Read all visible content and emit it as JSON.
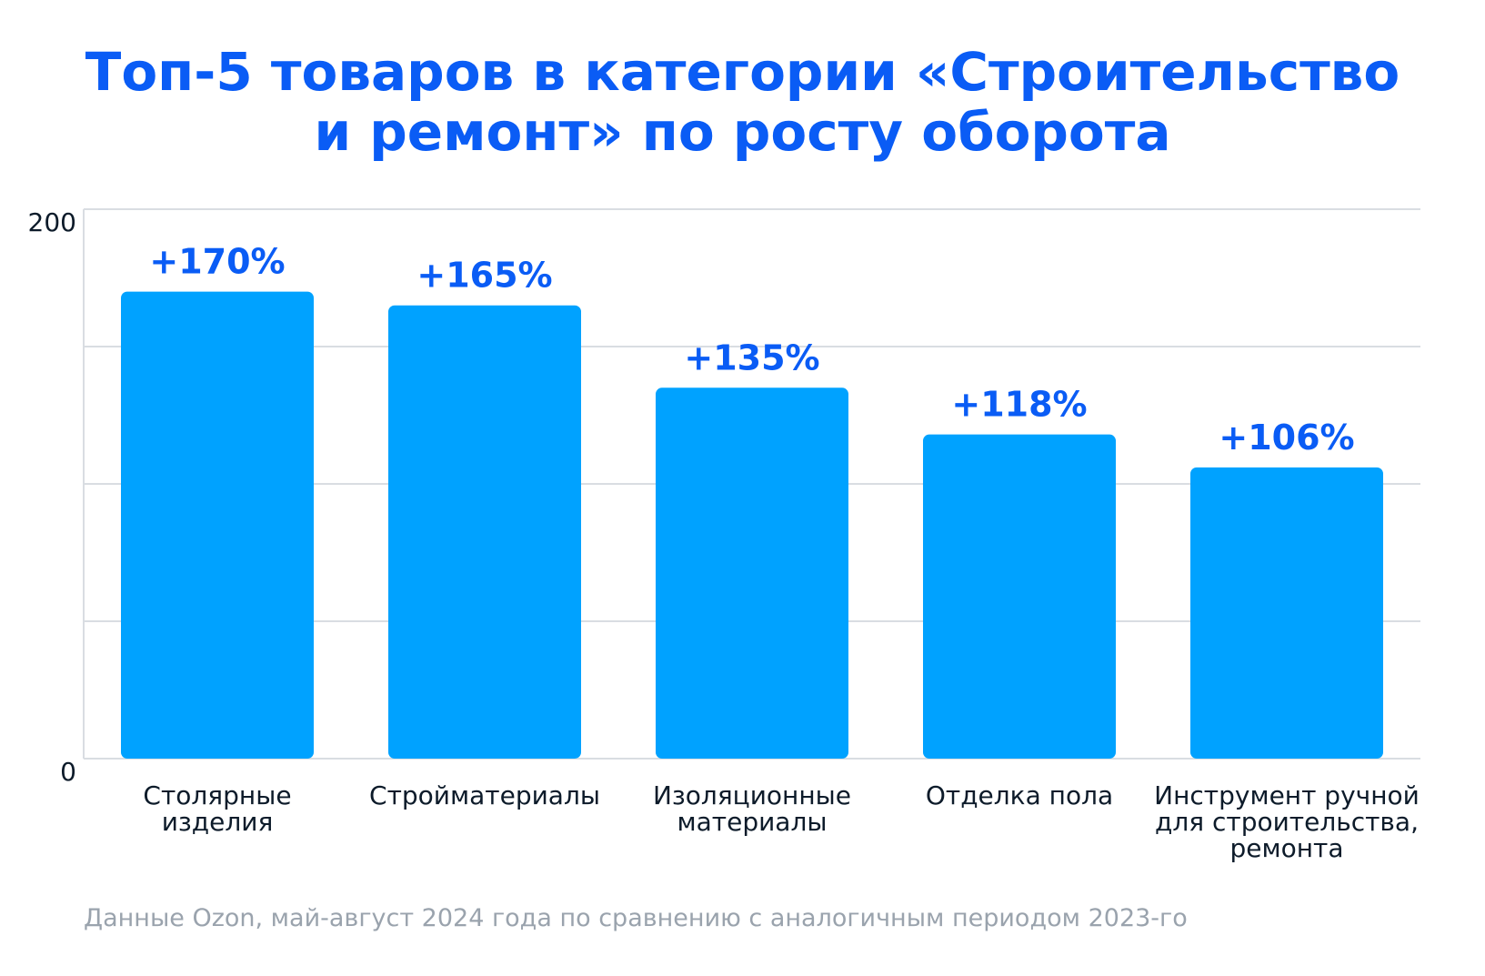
{
  "title": {
    "line1": "Топ-5 товаров в категории «Строительство",
    "line2": "и ремонт» по росту оборота"
  },
  "note": "Данные Ozon, май-август 2024 года по сравнению с аналогичным периодом 2023-го",
  "colors": {
    "title": "#0a5cf5",
    "bar": "#00a2ff",
    "value_label": "#0a5cf5",
    "category_label": "#0d1b2a",
    "grid": "#d9dde2",
    "note": "#9aa3ad"
  },
  "chart_data": {
    "type": "bar",
    "categories": [
      [
        "Столярные",
        "изделия"
      ],
      [
        "Стройматериалы"
      ],
      [
        "Изоляционные",
        "материалы"
      ],
      [
        "Отделка пола"
      ],
      [
        "Инструмент ручной",
        "для строительства,",
        "ремонта"
      ]
    ],
    "values": [
      170,
      165,
      135,
      118,
      106
    ],
    "value_labels": [
      "+170%",
      "+165%",
      "+135%",
      "+118%",
      "+106%"
    ],
    "ylim": [
      0,
      200
    ],
    "yticks": [
      0,
      200
    ],
    "gridlines": [
      0,
      50,
      100,
      150,
      200
    ],
    "grid": true
  }
}
